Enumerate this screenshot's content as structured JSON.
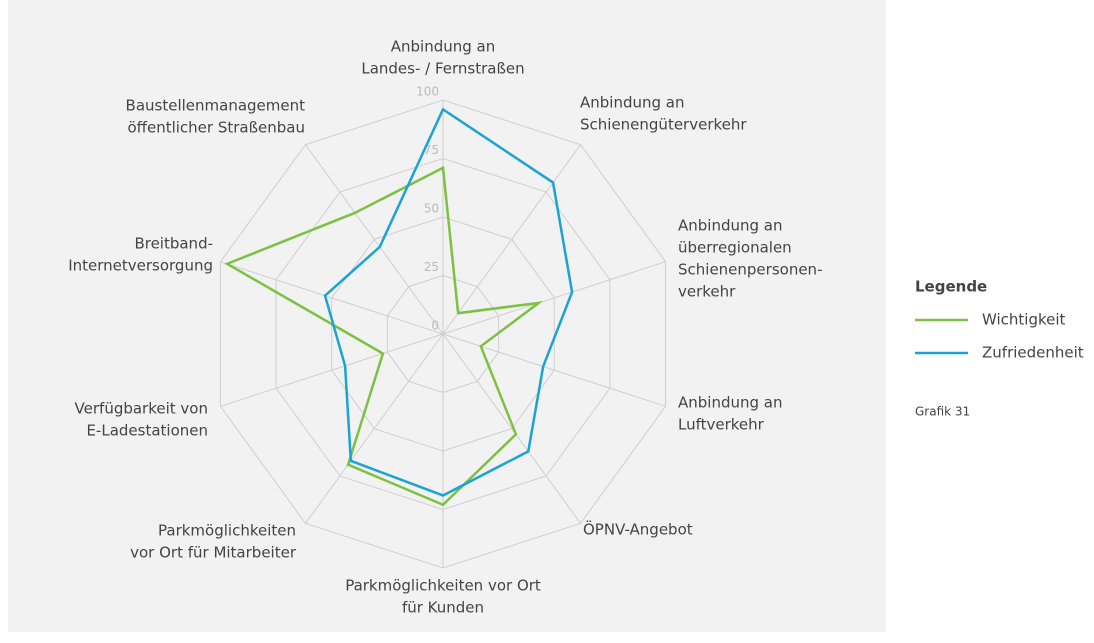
{
  "chart_data": {
    "type": "radar",
    "categories": [
      [
        "Anbindung an",
        "Landes- / Fernstraßen"
      ],
      [
        "Anbindung an",
        "Schienengüterverkehr"
      ],
      [
        "Anbindung an",
        "überregionalen",
        "Schienenpersonen-",
        "verkehr"
      ],
      [
        "Anbindung an",
        "Luftverkehr"
      ],
      [
        "ÖPNV-Angebot"
      ],
      [
        "Parkmöglichkeiten vor Ort",
        "für Kunden"
      ],
      [
        "Parkmöglichkeiten",
        "vor Ort für Mitarbeiter"
      ],
      [
        "Verfügbarkeit von",
        "E-Ladestationen"
      ],
      [
        "Breitband-",
        "Internetversorgung"
      ],
      [
        "Baustellenmanagement",
        "öffentlicher Straßenbau"
      ]
    ],
    "series": [
      {
        "name": "Wichtigkeit",
        "color": "#7cc142",
        "values": [
          71,
          11,
          43,
          17,
          53,
          73,
          69,
          27,
          97,
          64
        ]
      },
      {
        "name": "Zufriedenheit",
        "color": "#1ba3d3",
        "values": [
          96,
          80,
          58,
          45,
          62,
          69,
          67,
          44,
          53,
          46
        ]
      }
    ],
    "ylim": [
      0,
      100
    ],
    "yticks": [
      0,
      25,
      50,
      75,
      100
    ],
    "legend_title": "Legende",
    "note": "Grafik 31"
  }
}
